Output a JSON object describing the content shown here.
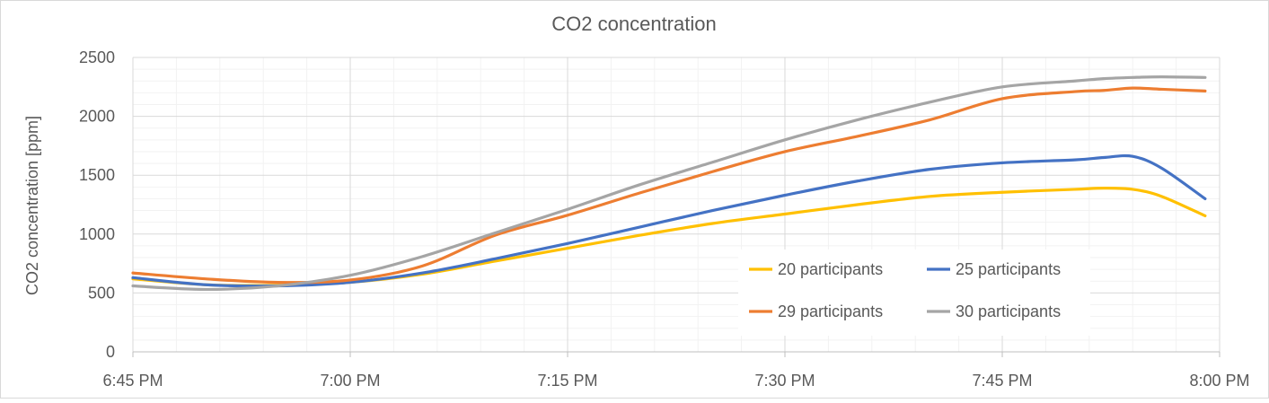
{
  "chart_data": {
    "type": "line",
    "title": "CO2 concentration",
    "xlabel": "",
    "ylabel": "CO2 concentration [ppm]",
    "xlim": [
      "6:45 PM",
      "8:00 PM"
    ],
    "ylim": [
      0,
      2500
    ],
    "x_ticks": [
      "6:45 PM",
      "7:00 PM",
      "7:15 PM",
      "7:30 PM",
      "7:45 PM",
      "8:00 PM"
    ],
    "y_ticks": [
      "0",
      "500",
      "1000",
      "1500",
      "2000",
      "2500"
    ],
    "grid": true,
    "legend_position": "bottom-right",
    "x": [
      "6:45 PM",
      "6:50 PM",
      "6:55 PM",
      "7:00 PM",
      "7:05 PM",
      "7:10 PM",
      "7:15 PM",
      "7:20 PM",
      "7:25 PM",
      "7:30 PM",
      "7:35 PM",
      "7:40 PM",
      "7:45 PM",
      "7:50 PM",
      "7:52 PM",
      "7:54 PM",
      "7:56 PM",
      "7:59 PM"
    ],
    "series": [
      {
        "name": "20 participants",
        "color": "#FFC000",
        "values": [
          620,
          570,
          565,
          590,
          660,
          770,
          880,
          990,
          1090,
          1170,
          1250,
          1320,
          1355,
          1380,
          1390,
          1380,
          1320,
          1155
        ]
      },
      {
        "name": "25 participants",
        "color": "#4472C4",
        "values": [
          630,
          570,
          560,
          590,
          670,
          790,
          920,
          1060,
          1200,
          1330,
          1450,
          1550,
          1605,
          1630,
          1650,
          1660,
          1560,
          1300
        ]
      },
      {
        "name": "29 participants",
        "color": "#ED7D31",
        "values": [
          670,
          620,
          590,
          610,
          730,
          990,
          1160,
          1350,
          1530,
          1700,
          1830,
          1970,
          2150,
          2210,
          2220,
          2240,
          2230,
          2215
        ]
      },
      {
        "name": "30 participants",
        "color": "#A5A5A5",
        "values": [
          560,
          530,
          560,
          650,
          810,
          1010,
          1210,
          1420,
          1610,
          1800,
          1970,
          2120,
          2250,
          2300,
          2320,
          2330,
          2335,
          2330
        ]
      }
    ]
  }
}
